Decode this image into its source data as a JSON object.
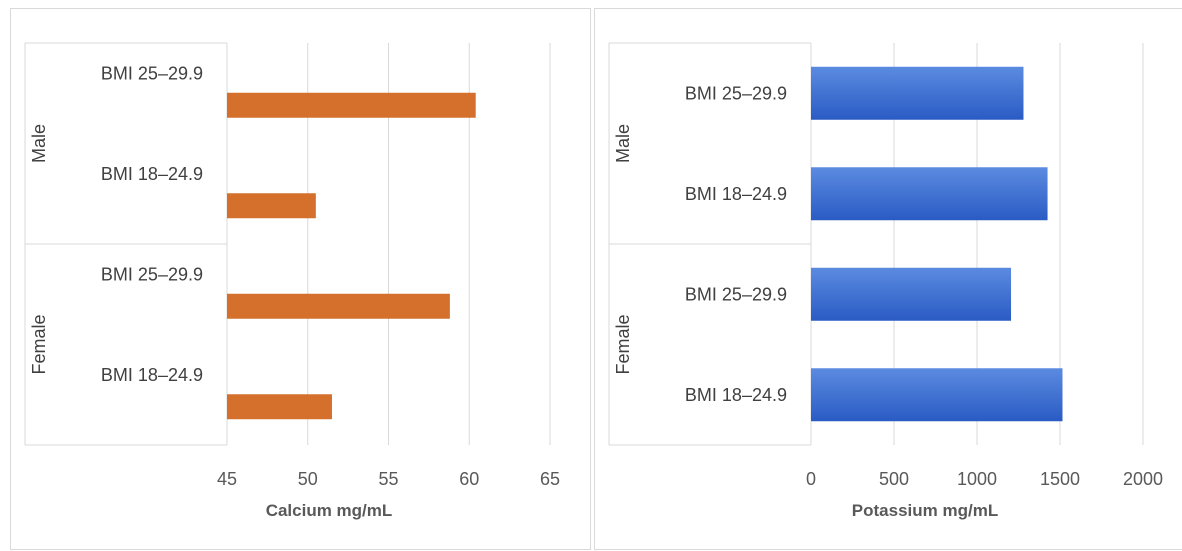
{
  "chart_data": [
    {
      "type": "bar",
      "orientation": "horizontal",
      "groups": [
        {
          "name": "Male",
          "categories": [
            "BMI 25–29.9",
            "BMI 18–24.9"
          ]
        },
        {
          "name": "Female",
          "categories": [
            "BMI 25–29.9",
            "BMI 18–24.9"
          ]
        }
      ],
      "values": [
        60.4,
        50.5,
        58.8,
        51.5
      ],
      "xlabel": "Calcium  mg/mL",
      "xlim": [
        45,
        65
      ],
      "xticks": [
        45,
        50,
        55,
        60,
        65
      ],
      "grid": true,
      "color": "#d4702b"
    },
    {
      "type": "bar",
      "orientation": "horizontal",
      "groups": [
        {
          "name": "Male",
          "categories": [
            "BMI 25–29.9",
            "BMI 18–24.9"
          ]
        },
        {
          "name": "Female",
          "categories": [
            "BMI 25–29.9",
            "BMI 18–24.9"
          ]
        }
      ],
      "values": [
        1280,
        1425,
        1205,
        1515
      ],
      "xlabel": "Potassium mg/mL",
      "xlim": [
        0,
        2000
      ],
      "xticks": [
        0,
        500,
        1000,
        1500,
        2000
      ],
      "grid": true,
      "color": "#3366cc"
    }
  ]
}
